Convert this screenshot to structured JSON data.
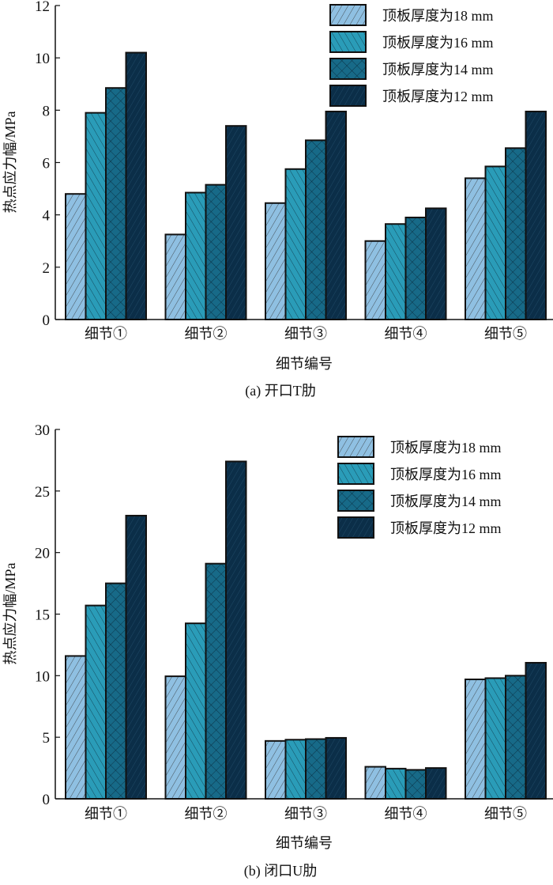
{
  "series_colors": [
    "#8fc0e2",
    "#2a9cb8",
    "#176a88",
    "#0b2e48"
  ],
  "chart_data": [
    {
      "type": "bar",
      "caption": "(a)  开口T肋",
      "xlabel": "细节编号",
      "ylabel": "热点应力幅/MPa",
      "ylim": [
        0,
        12
      ],
      "yticks": [
        0,
        2,
        4,
        6,
        8,
        10,
        12
      ],
      "categories": [
        "细节①",
        "细节②",
        "细节③",
        "细节④",
        "细节⑤"
      ],
      "legend_position": "top-right",
      "series": [
        {
          "name": "顶板厚度为18 mm",
          "values": [
            4.8,
            3.25,
            4.45,
            3.0,
            5.4
          ]
        },
        {
          "name": "顶板厚度为16 mm",
          "values": [
            7.9,
            4.85,
            5.75,
            3.65,
            5.85
          ]
        },
        {
          "name": "顶板厚度为14 mm",
          "values": [
            8.85,
            5.15,
            6.85,
            3.9,
            6.55
          ]
        },
        {
          "name": "顶板厚度为12 mm",
          "values": [
            10.2,
            7.4,
            7.95,
            4.25,
            7.95
          ]
        }
      ]
    },
    {
      "type": "bar",
      "caption": "(b)  闭口U肋",
      "xlabel": "细节编号",
      "ylabel": "热点应力幅/MPa",
      "ylim": [
        0,
        30
      ],
      "yticks": [
        0,
        5,
        10,
        15,
        20,
        25,
        30
      ],
      "categories": [
        "细节①",
        "细节②",
        "细节③",
        "细节④",
        "细节⑤"
      ],
      "legend_position": "top-right",
      "series": [
        {
          "name": "顶板厚度为18 mm",
          "values": [
            11.6,
            9.95,
            4.7,
            2.6,
            9.7
          ]
        },
        {
          "name": "顶板厚度为16 mm",
          "values": [
            15.7,
            14.25,
            4.8,
            2.45,
            9.8
          ]
        },
        {
          "name": "顶板厚度为14 mm",
          "values": [
            17.5,
            19.1,
            4.85,
            2.35,
            10.0
          ]
        },
        {
          "name": "顶板厚度为12 mm",
          "values": [
            23.0,
            27.4,
            4.95,
            2.5,
            11.05
          ]
        }
      ]
    }
  ]
}
